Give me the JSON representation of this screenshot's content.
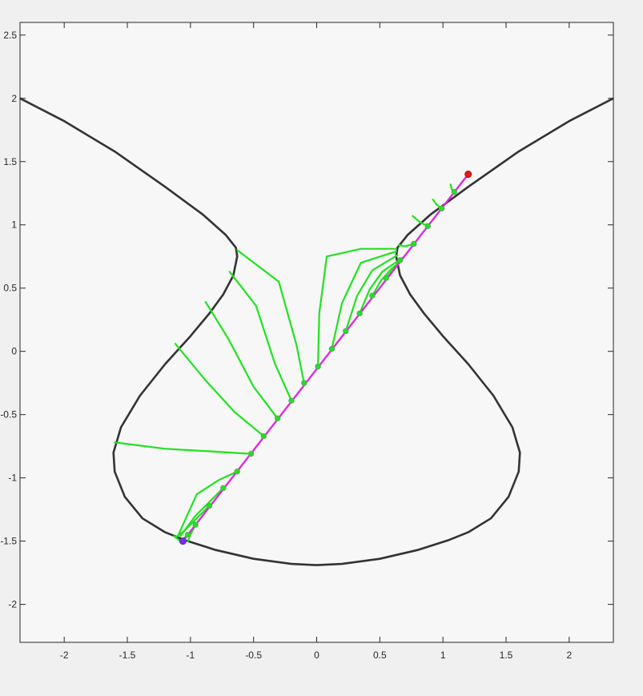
{
  "colors": {
    "figure_background": "#f0f0f0",
    "axes_background": "#f7f7f7",
    "axes_border": "#262626",
    "curve": "#333333",
    "line": "#d82ed8",
    "paths": "#22e022",
    "start_point": "#7a2ef0",
    "end_point": "#e81818"
  },
  "chart_data": {
    "type": "line",
    "title": "",
    "xlabel": "",
    "ylabel": "",
    "xlim": [
      -2.35,
      2.35
    ],
    "ylim": [
      -2.3,
      2.6
    ],
    "grid": false,
    "x_ticks": [
      -2,
      -1.5,
      -1,
      -0.5,
      0,
      0.5,
      1,
      1.5,
      2
    ],
    "y_ticks": [
      -2,
      -1.5,
      -1,
      -0.5,
      0,
      0.5,
      1,
      1.5,
      2,
      2.5
    ],
    "x_tick_labels": [
      "-2",
      "-1.5",
      "-1",
      "-0.5",
      "0",
      "0.5",
      "1",
      "1.5",
      "2"
    ],
    "y_tick_labels": [
      "-2",
      "-1.5",
      "-1",
      "-0.5",
      "0",
      "0.5",
      "1",
      "1.5",
      "2",
      "2.5"
    ],
    "curve_branches": [
      {
        "name": "",
        "x": [
          -2.35,
          -2.0,
          -1.6,
          -1.2,
          -0.9,
          -0.72,
          -0.64,
          -0.63,
          -0.66,
          -0.74,
          -0.85,
          -1.0,
          -1.2,
          -1.4,
          -1.55,
          -1.61,
          -1.6,
          -1.52,
          -1.38,
          -1.2,
          -1.05,
          -0.8,
          -0.5,
          -0.2,
          0.0,
          0.2,
          0.5,
          0.8,
          1.05,
          1.2,
          1.38,
          1.52,
          1.6,
          1.61,
          1.55,
          1.4,
          1.2,
          1.0,
          0.85,
          0.74,
          0.66,
          0.63,
          0.64,
          0.72,
          0.9,
          1.2,
          1.6,
          2.0,
          2.35
        ],
        "y": [
          2.0,
          1.82,
          1.58,
          1.3,
          1.08,
          0.92,
          0.82,
          0.75,
          0.6,
          0.45,
          0.3,
          0.12,
          -0.1,
          -0.35,
          -0.6,
          -0.8,
          -0.95,
          -1.15,
          -1.32,
          -1.43,
          -1.49,
          -1.57,
          -1.64,
          -1.68,
          -1.69,
          -1.68,
          -1.64,
          -1.57,
          -1.49,
          -1.43,
          -1.32,
          -1.15,
          -0.95,
          -0.8,
          -0.6,
          -0.35,
          -0.1,
          0.12,
          0.3,
          0.45,
          0.6,
          0.75,
          0.82,
          0.92,
          1.08,
          1.3,
          1.58,
          1.82,
          2.0
        ]
      }
    ],
    "series": [
      {
        "name": "",
        "type": "line",
        "x": [
          -1.06,
          1.2
        ],
        "y": [
          -1.5,
          1.4
        ]
      }
    ],
    "line_samples": {
      "x": [
        -1.02,
        -0.96,
        -0.85,
        -0.74,
        -0.63,
        -0.52,
        -0.42,
        -0.31,
        -0.2,
        -0.1,
        0.01,
        0.12,
        0.23,
        0.34,
        0.44,
        0.55,
        0.66,
        0.77,
        0.88,
        0.99,
        1.09
      ],
      "y": [
        -1.45,
        -1.37,
        -1.22,
        -1.08,
        -0.95,
        -0.81,
        -0.67,
        -0.53,
        -0.39,
        -0.25,
        -0.12,
        0.02,
        0.16,
        0.3,
        0.44,
        0.58,
        0.72,
        0.85,
        0.99,
        1.13,
        1.26
      ]
    },
    "paths": [
      {
        "x": [
          -1.02,
          -1.08,
          -1.13
        ],
        "y": [
          -1.45,
          -1.5,
          -1.46
        ]
      },
      {
        "x": [
          -0.96,
          -1.0,
          -1.02
        ],
        "y": [
          -1.37,
          -1.45,
          -1.5
        ]
      },
      {
        "x": [
          -0.85,
          -0.96,
          -1.05,
          -1.12
        ],
        "y": [
          -1.22,
          -1.33,
          -1.42,
          -1.47
        ]
      },
      {
        "x": [
          -0.74,
          -0.84,
          -0.96,
          -1.08
        ],
        "y": [
          -1.08,
          -1.18,
          -1.3,
          -1.46
        ]
      },
      {
        "x": [
          -0.63,
          -0.78,
          -0.95,
          -1.1
        ],
        "y": [
          -0.95,
          -1.02,
          -1.13,
          -1.46
        ]
      },
      {
        "x": [
          -0.52,
          -0.85,
          -1.2,
          -1.6
        ],
        "y": [
          -0.81,
          -0.79,
          -0.77,
          -0.72
        ]
      },
      {
        "x": [
          -0.42,
          -0.65,
          -0.88,
          -1.12
        ],
        "y": [
          -0.67,
          -0.48,
          -0.23,
          0.06
        ]
      },
      {
        "x": [
          -0.31,
          -0.5,
          -0.7,
          -0.88
        ],
        "y": [
          -0.53,
          -0.28,
          0.1,
          0.39
        ]
      },
      {
        "x": [
          -0.2,
          -0.33,
          -0.48,
          -0.69
        ],
        "y": [
          -0.39,
          -0.1,
          0.36,
          0.63
        ]
      },
      {
        "x": [
          -0.1,
          -0.16,
          -0.3,
          -0.63
        ],
        "y": [
          -0.25,
          0.05,
          0.55,
          0.8
        ]
      },
      {
        "x": [
          0.01,
          0.02,
          0.08,
          0.35,
          0.63
        ],
        "y": [
          -0.12,
          0.3,
          0.75,
          0.81,
          0.81
        ]
      },
      {
        "x": [
          0.12,
          0.2,
          0.35,
          0.63
        ],
        "y": [
          0.02,
          0.38,
          0.7,
          0.79
        ]
      },
      {
        "x": [
          0.23,
          0.32,
          0.44,
          0.64
        ],
        "y": [
          0.16,
          0.44,
          0.64,
          0.76
        ]
      },
      {
        "x": [
          0.34,
          0.42,
          0.52,
          0.65
        ],
        "y": [
          0.3,
          0.49,
          0.63,
          0.72
        ]
      },
      {
        "x": [
          0.44,
          0.51,
          0.59,
          0.66
        ],
        "y": [
          0.44,
          0.56,
          0.65,
          0.71
        ]
      },
      {
        "x": [
          0.55,
          0.6,
          0.66
        ],
        "y": [
          0.58,
          0.64,
          0.72
        ]
      },
      {
        "x": [
          0.66,
          0.68
        ],
        "y": [
          0.72,
          0.74
        ]
      },
      {
        "x": [
          0.77,
          0.7,
          0.65
        ],
        "y": [
          0.85,
          0.83,
          0.84
        ]
      },
      {
        "x": [
          0.88,
          0.82,
          0.76
        ],
        "y": [
          0.99,
          1.02,
          1.07
        ]
      },
      {
        "x": [
          0.99,
          0.95,
          0.92
        ],
        "y": [
          1.13,
          1.16,
          1.2
        ]
      },
      {
        "x": [
          1.09,
          1.07,
          1.06
        ],
        "y": [
          1.26,
          1.28,
          1.32
        ]
      }
    ],
    "start_point": {
      "x": -1.06,
      "y": -1.5
    },
    "end_point": {
      "x": 1.2,
      "y": 1.4
    }
  }
}
